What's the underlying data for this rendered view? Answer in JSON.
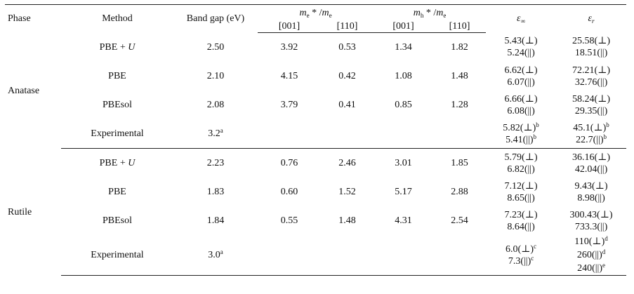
{
  "headers": {
    "phase": "Phase",
    "method": "Method",
    "band_gap": "Band gap (eV)",
    "me_main": "m",
    "me_sub": "e",
    "me_mid": " * /",
    "me_denom_main": "m",
    "me_denom_sub": "e",
    "mh_main": "m",
    "mh_sub": "h",
    "mh_mid": " * /",
    "mh_denom_main": "m",
    "mh_denom_sub": "e",
    "dir_001_e": "[001]",
    "dir_110_e": "[110]",
    "dir_001_h": "[001]",
    "dir_110_h": "[110]",
    "eps_inf_main": "ε",
    "eps_inf_sub": "∞",
    "eps_r_main": "ε",
    "eps_r_sub": "r"
  },
  "anatase": {
    "phase": "Anatase",
    "rows": [
      {
        "method": "PBE + ",
        "method_it": "U",
        "gap": "2.50",
        "gap_sup": "",
        "me001": "3.92",
        "me110": "0.53",
        "mh001": "1.34",
        "mh110": "1.82",
        "einf": [
          "5.43(⊥)",
          "5.24(||)"
        ],
        "einf_sup": [
          "",
          ""
        ],
        "er": [
          "25.58(⊥)",
          "18.51(||)"
        ],
        "er_sup": [
          "",
          ""
        ]
      },
      {
        "method": "PBE",
        "method_it": "",
        "gap": "2.10",
        "gap_sup": "",
        "me001": "4.15",
        "me110": "0.42",
        "mh001": "1.08",
        "mh110": "1.48",
        "einf": [
          "6.62(⊥)",
          "6.07(||)"
        ],
        "einf_sup": [
          "",
          ""
        ],
        "er": [
          "72.21(⊥)",
          "32.76(||)"
        ],
        "er_sup": [
          "",
          ""
        ]
      },
      {
        "method": "PBEsol",
        "method_it": "",
        "gap": "2.08",
        "gap_sup": "",
        "me001": "3.79",
        "me110": "0.41",
        "mh001": "0.85",
        "mh110": "1.28",
        "einf": [
          "6.66(⊥)",
          "6.08(||)"
        ],
        "einf_sup": [
          "",
          ""
        ],
        "er": [
          "58.24(⊥)",
          "29.35(||)"
        ],
        "er_sup": [
          "",
          ""
        ]
      },
      {
        "method": "Experimental",
        "method_it": "",
        "gap": "3.2",
        "gap_sup": "a",
        "me001": "",
        "me110": "",
        "mh001": "",
        "mh110": "",
        "einf": [
          "5.82(⊥)",
          "5.41(||)"
        ],
        "einf_sup": [
          "b",
          "b"
        ],
        "er": [
          "45.1(⊥)",
          "22.7(||)"
        ],
        "er_sup": [
          "b",
          "b"
        ]
      }
    ]
  },
  "rutile": {
    "phase": "Rutile",
    "rows": [
      {
        "method": "PBE + ",
        "method_it": "U",
        "gap": "2.23",
        "gap_sup": "",
        "me001": "0.76",
        "me110": "2.46",
        "mh001": "3.01",
        "mh110": "1.85",
        "einf": [
          "5.79(⊥)",
          "6.82(||)"
        ],
        "einf_sup": [
          "",
          ""
        ],
        "er": [
          "36.16(⊥)",
          "42.04(||)"
        ],
        "er_sup": [
          "",
          ""
        ]
      },
      {
        "method": "PBE",
        "method_it": "",
        "gap": "1.83",
        "gap_sup": "",
        "me001": "0.60",
        "me110": "1.52",
        "mh001": "5.17",
        "mh110": "2.88",
        "einf": [
          "7.12(⊥)",
          "8.65(||)"
        ],
        "einf_sup": [
          "",
          ""
        ],
        "er": [
          "9.43(⊥)",
          "8.98(||)"
        ],
        "er_sup": [
          "",
          ""
        ]
      },
      {
        "method": "PBEsol",
        "method_it": "",
        "gap": "1.84",
        "gap_sup": "",
        "me001": "0.55",
        "me110": "1.48",
        "mh001": "4.31",
        "mh110": "2.54",
        "einf": [
          "7.23(⊥)",
          "8.64(||)"
        ],
        "einf_sup": [
          "",
          ""
        ],
        "er": [
          "300.43(⊥)",
          "733.3(||)"
        ],
        "er_sup": [
          "",
          ""
        ]
      },
      {
        "method": "Experimental",
        "method_it": "",
        "gap": "3.0",
        "gap_sup": "a",
        "me001": "",
        "me110": "",
        "mh001": "",
        "mh110": "",
        "einf": [
          "6.0(⊥)",
          "7.3(||)"
        ],
        "einf_sup": [
          "c",
          "c"
        ],
        "er": [
          "110(⊥)",
          "260(||)",
          "240(||)"
        ],
        "er_sup": [
          "d",
          "d",
          "e"
        ]
      }
    ]
  }
}
